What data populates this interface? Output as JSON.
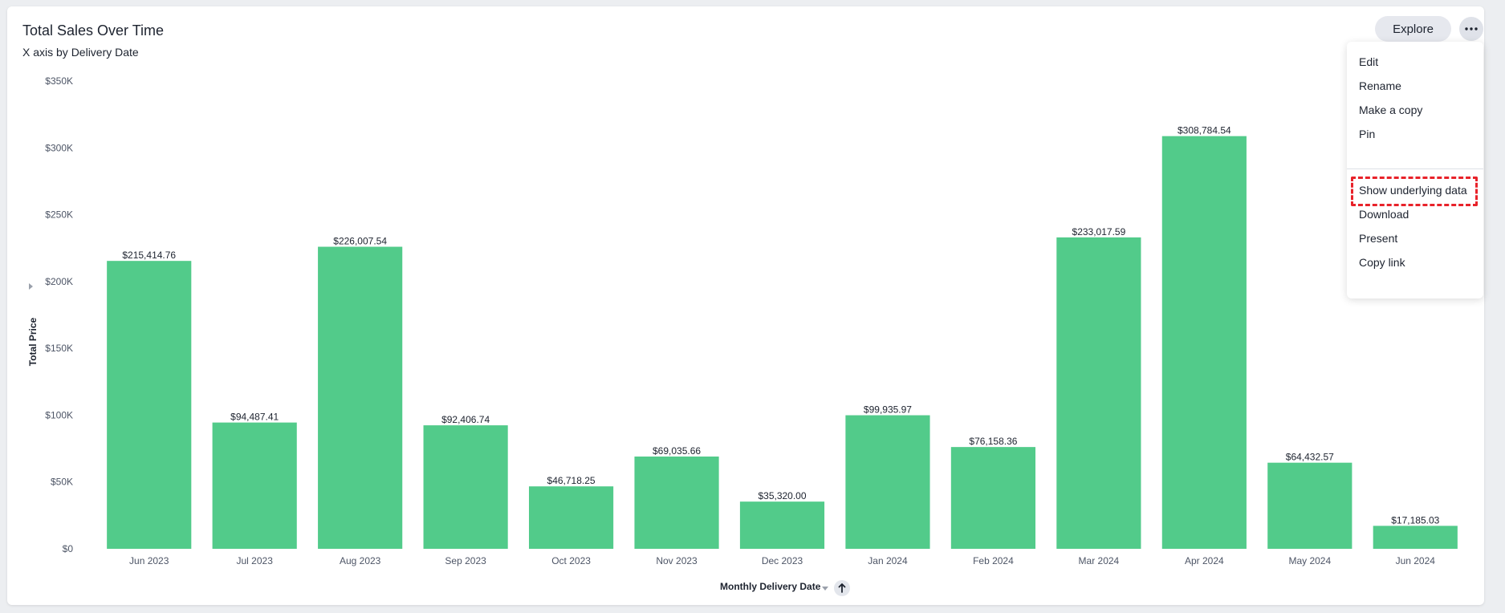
{
  "header": {
    "title": "Total Sales Over Time",
    "subtitle": "X axis by Delivery Date",
    "explore_label": "Explore"
  },
  "menu": {
    "items": [
      "Edit",
      "Rename",
      "Make a copy",
      "Pin",
      "Show underlying data",
      "Download",
      "Present",
      "Copy link"
    ],
    "highlighted": "Show underlying data"
  },
  "colors": {
    "bar": "#52cb8a",
    "highlight": "#e8222a"
  },
  "icons": {
    "more": "more-horizontal-icon",
    "sort": "arrow-up-icon",
    "ylabel_caret": "caret-right-icon",
    "xlabel_caret": "caret-down-icon"
  },
  "chart_data": {
    "type": "bar",
    "title": "Total Sales Over Time",
    "subtitle": "X axis by Delivery Date",
    "xlabel": "Monthly Delivery Date",
    "ylabel": "Total Price",
    "categories": [
      "Jun 2023",
      "Jul 2023",
      "Aug 2023",
      "Sep 2023",
      "Oct 2023",
      "Nov 2023",
      "Dec 2023",
      "Jan 2024",
      "Feb 2024",
      "Mar 2024",
      "Apr 2024",
      "May 2024",
      "Jun 2024"
    ],
    "values": [
      215414.76,
      94487.41,
      226007.54,
      92406.74,
      46718.25,
      69035.66,
      35320.0,
      99935.97,
      76158.36,
      233017.59,
      308784.54,
      64432.57,
      17185.03
    ],
    "value_labels": [
      "$215,414.76",
      "$94,487.41",
      "$226,007.54",
      "$92,406.74",
      "$46,718.25",
      "$69,035.66",
      "$35,320.00",
      "$99,935.97",
      "$76,158.36",
      "$233,017.59",
      "$308,784.54",
      "$64,432.57",
      "$17,185.03"
    ],
    "ylim": [
      0,
      350000
    ],
    "yticks": [
      0,
      50000,
      100000,
      150000,
      200000,
      250000,
      300000,
      350000
    ],
    "ytick_labels": [
      "$0",
      "$50K",
      "$100K",
      "$150K",
      "$200K",
      "$250K",
      "$300K",
      "$350K"
    ],
    "grid": false,
    "legend": "none"
  }
}
